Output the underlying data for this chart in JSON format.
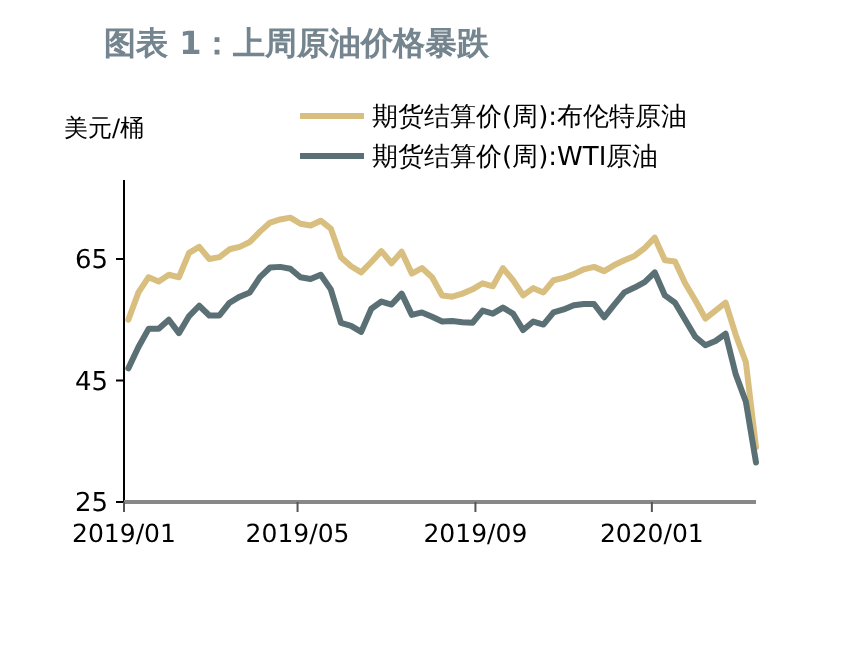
{
  "chart_data": {
    "type": "line",
    "title": "图表 1：上周原油价格暴跌",
    "ylabel": "美元/桶",
    "x": [
      "2019-01-04",
      "2019-01-11",
      "2019-01-18",
      "2019-01-25",
      "2019-02-01",
      "2019-02-08",
      "2019-02-15",
      "2019-02-22",
      "2019-03-01",
      "2019-03-08",
      "2019-03-15",
      "2019-03-22",
      "2019-03-29",
      "2019-04-05",
      "2019-04-12",
      "2019-04-19",
      "2019-04-26",
      "2019-05-03",
      "2019-05-10",
      "2019-05-17",
      "2019-05-24",
      "2019-05-31",
      "2019-06-07",
      "2019-06-14",
      "2019-06-21",
      "2019-06-28",
      "2019-07-05",
      "2019-07-12",
      "2019-07-19",
      "2019-07-26",
      "2019-08-02",
      "2019-08-09",
      "2019-08-16",
      "2019-08-23",
      "2019-08-30",
      "2019-09-06",
      "2019-09-13",
      "2019-09-20",
      "2019-09-27",
      "2019-10-04",
      "2019-10-11",
      "2019-10-18",
      "2019-10-25",
      "2019-11-01",
      "2019-11-08",
      "2019-11-15",
      "2019-11-22",
      "2019-11-29",
      "2019-12-06",
      "2019-12-13",
      "2019-12-20",
      "2019-12-27",
      "2020-01-03",
      "2020-01-10",
      "2020-01-17",
      "2020-01-24",
      "2020-01-31",
      "2020-02-07",
      "2020-02-14",
      "2020-02-21",
      "2020-02-28",
      "2020-03-06",
      "2020-03-13"
    ],
    "series": [
      {
        "name": "期货结算价(周):布伦特原油",
        "color": "#d9bf7f",
        "values": [
          55,
          59.5,
          62,
          61.3,
          62.4,
          62,
          66,
          67,
          65,
          65.3,
          66.6,
          67,
          67.8,
          69.5,
          71,
          71.5,
          71.8,
          70.8,
          70.5,
          71.3,
          70,
          65.3,
          63.8,
          62.8,
          64.5,
          66.3,
          64.3,
          66.2,
          62.6,
          63.5,
          62,
          59,
          58.8,
          59.3,
          60,
          61,
          60.5,
          63.5,
          61.5,
          59,
          60.2,
          59.5,
          61.5,
          61.9,
          62.5,
          63.3,
          63.7,
          63,
          64,
          64.8,
          65.5,
          66.8,
          68.5,
          64.8,
          64.6,
          61,
          58.2,
          55.2,
          56.5,
          57.8,
          52.5,
          48,
          34
        ]
      },
      {
        "name": "期货结算价(周):WTI原油",
        "color": "#5a7075",
        "values": [
          47,
          50.5,
          53.5,
          53.5,
          55,
          52.8,
          55.6,
          57.3,
          55.7,
          55.7,
          57.8,
          58.8,
          59.5,
          62,
          63.6,
          63.7,
          63.4,
          62,
          61.7,
          62.4,
          60,
          54.5,
          54,
          53,
          56.8,
          58,
          57.5,
          59.3,
          55.8,
          56.2,
          55.5,
          54.7,
          54.8,
          54.6,
          54.5,
          56.5,
          56,
          57,
          56,
          53.3,
          54.7,
          54.2,
          56.2,
          56.7,
          57.4,
          57.6,
          57.6,
          55.4,
          57.5,
          59.5,
          60.3,
          61.2,
          62.8,
          59,
          57.8,
          55,
          52.2,
          50.8,
          51.5,
          52.7,
          46,
          41.5,
          31.5
        ]
      }
    ],
    "xlim": [
      "2019-01-01",
      "2020-03-13"
    ],
    "xticks": [
      {
        "value": "2019-01-01",
        "label": "2019/01"
      },
      {
        "value": "2019-05-01",
        "label": "2019/05"
      },
      {
        "value": "2019-09-01",
        "label": "2019/09"
      },
      {
        "value": "2020-01-01",
        "label": "2020/01"
      }
    ],
    "ylim": [
      25,
      78
    ],
    "yticks": [
      25,
      45,
      65
    ],
    "grid": false,
    "legend": "top"
  }
}
